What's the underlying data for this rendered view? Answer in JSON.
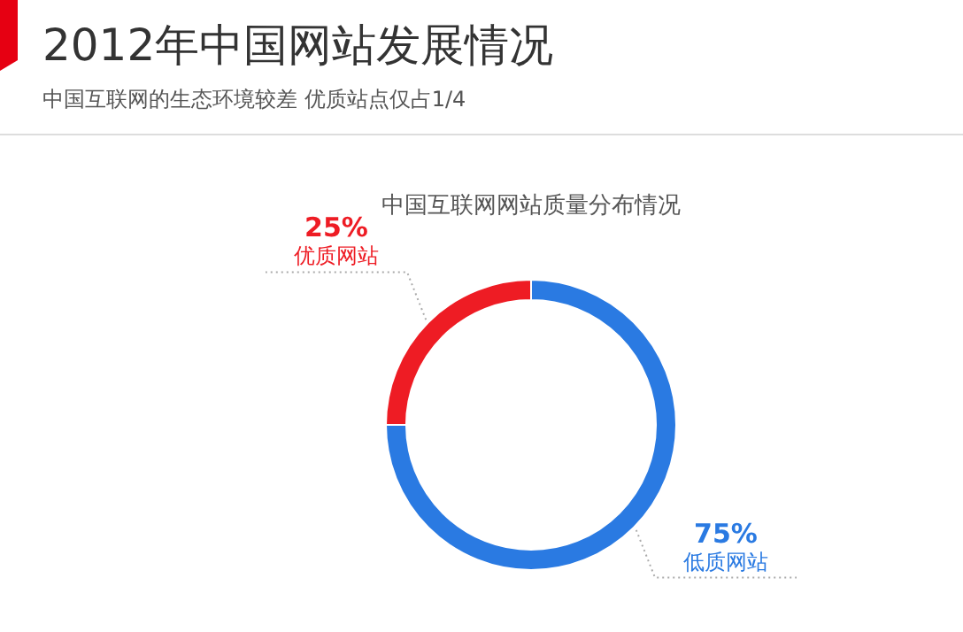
{
  "chart_data": {
    "type": "donut",
    "title": "2012年中国网站发展情况",
    "subtitle": "中国互联网的生态环境较差  优质站点仅占1/4",
    "annotations": [
      "中国互联网网站质量分布情况"
    ],
    "categories": [
      "优质网站",
      "低质网站"
    ],
    "values": [
      25,
      75
    ],
    "value_labels": [
      "25%",
      "75%"
    ],
    "colors": [
      "#ee1c24",
      "#2a7ae2"
    ]
  }
}
